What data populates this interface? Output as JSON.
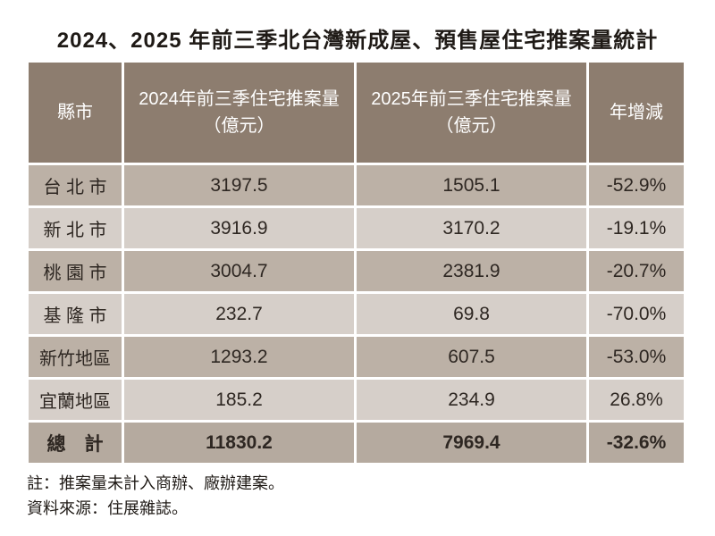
{
  "title": "2024、2025 年前三季北台灣新成屋、預售屋住宅推案量統計",
  "colors": {
    "header_bg": "#8d7d6f",
    "row_dark_bg": "#bcb1a6",
    "row_light_bg": "#d6cfc9",
    "total_row_bg": "#b5aa9f",
    "header_text": "#ffffff",
    "body_text": "#2e2722",
    "page_bg": "#ffffff"
  },
  "table": {
    "columns": [
      {
        "line1": "縣市",
        "line2": ""
      },
      {
        "line1": "2024年前三季住宅推案量",
        "line2": "（億元）"
      },
      {
        "line1": "2025年前三季住宅推案量",
        "line2": "（億元）"
      },
      {
        "line1": "年增減",
        "line2": ""
      }
    ],
    "rows": [
      {
        "region": "台 北 市",
        "y2024": "3197.5",
        "y2025": "1505.1",
        "yoy": "-52.9%"
      },
      {
        "region": "新 北 市",
        "y2024": "3916.9",
        "y2025": "3170.2",
        "yoy": "-19.1%"
      },
      {
        "region": "桃 園 市",
        "y2024": "3004.7",
        "y2025": "2381.9",
        "yoy": "-20.7%"
      },
      {
        "region": "基 隆 市",
        "y2024": "232.7",
        "y2025": "69.8",
        "yoy": "-70.0%"
      },
      {
        "region": "新竹地區",
        "y2024": "1293.2",
        "y2025": "607.5",
        "yoy": "-53.0%"
      },
      {
        "region": "宜蘭地區",
        "y2024": "185.2",
        "y2025": "234.9",
        "yoy": "26.8%"
      }
    ],
    "total": {
      "region": "總　計",
      "y2024": "11830.2",
      "y2025": "7969.4",
      "yoy": "-32.6%"
    }
  },
  "notes": {
    "note1": "註：推案量未計入商辦、廠辦建案。",
    "note2": "資料來源：住展雜誌。"
  },
  "chart_data": {
    "type": "table",
    "title": "2024、2025 年前三季北台灣新成屋、預售屋住宅推案量統計",
    "columns": [
      "縣市",
      "2024年前三季住宅推案量（億元）",
      "2025年前三季住宅推案量（億元）",
      "年增減"
    ],
    "rows": [
      [
        "台北市",
        3197.5,
        1505.1,
        "-52.9%"
      ],
      [
        "新北市",
        3916.9,
        3170.2,
        "-19.1%"
      ],
      [
        "桃園市",
        3004.7,
        2381.9,
        "-20.7%"
      ],
      [
        "基隆市",
        232.7,
        69.8,
        "-70.0%"
      ],
      [
        "新竹地區",
        1293.2,
        607.5,
        "-53.0%"
      ],
      [
        "宜蘭地區",
        185.2,
        234.9,
        "26.8%"
      ],
      [
        "總計",
        11830.2,
        7969.4,
        "-32.6%"
      ]
    ],
    "notes": [
      "註：推案量未計入商辦、廠辦建案。",
      "資料來源：住展雜誌。"
    ]
  }
}
